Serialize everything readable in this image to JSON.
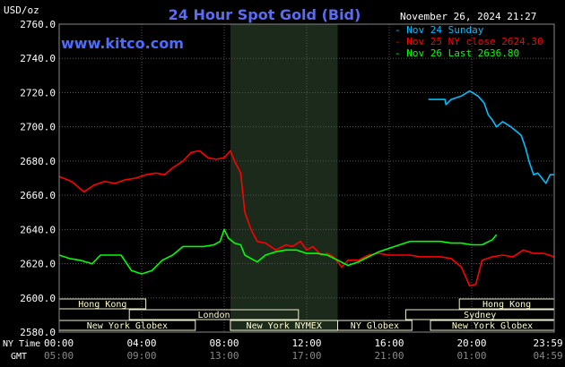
{
  "header": {
    "unit_label": "USD/oz",
    "title": "24 Hour Spot Gold (Bid)",
    "timestamp": "November 26, 2024 21:27",
    "site": "www.kitco.com"
  },
  "colors": {
    "nov24": "#00bfff",
    "nov25": "#ff0000",
    "nov26": "#00ff00",
    "grid": "#555555",
    "text": "#ffffff",
    "session_fill": "#ffffee",
    "nymex_shade": "#1c2a1c"
  },
  "legend": [
    {
      "label": "Nov 24 Sunday",
      "color": "#00bfff"
    },
    {
      "label": "Nov 25 NY close 2624.30",
      "color": "#ff0000"
    },
    {
      "label": "Nov 26 Last 2636.80",
      "color": "#00ff00"
    }
  ],
  "row_labels": {
    "ny_time": "NY Time",
    "gmt": "GMT"
  },
  "sessions": [
    {
      "label": "Hong Kong",
      "start": 0,
      "end": 4.2
    },
    {
      "label": "London",
      "start": 3.4,
      "end": 11.6
    },
    {
      "label": "New York Globex",
      "start": 0,
      "end": 6.6
    },
    {
      "label": "New York NYMEX",
      "start": 8.3,
      "end": 13.5
    },
    {
      "label": "NY Globex",
      "start": 13.5,
      "end": 17.1
    },
    {
      "label": "Hong Kong",
      "start": 19.4,
      "end": 24
    },
    {
      "label": "Sydney",
      "start": 16.8,
      "end": 24
    },
    {
      "label": "New York Globex",
      "start": 18,
      "end": 24
    }
  ],
  "chart_data": {
    "type": "line",
    "title": "24 Hour Spot Gold (Bid)",
    "ylabel": "USD/oz",
    "ylim": [
      2580,
      2760
    ],
    "yticks": [
      "2760.0",
      "2740.0",
      "2720.0",
      "2700.0",
      "2680.0",
      "2660.0",
      "2640.0",
      "2620.0",
      "2600.0",
      "2580.0"
    ],
    "xlim": [
      0,
      24
    ],
    "xticks_ny": [
      "00:00",
      "04:00",
      "08:00",
      "12:00",
      "16:00",
      "20:00",
      "23:59"
    ],
    "xticks_gmt": [
      "05:00",
      "09:00",
      "13:00",
      "17:00",
      "21:00",
      "01:00",
      "04:59"
    ],
    "nymex_session": [
      8.3,
      13.5
    ],
    "series": [
      {
        "name": "Nov 24 Sunday",
        "color": "#00bfff",
        "x": [
          17.9,
          18.7,
          18.75,
          19.0,
          19.5,
          19.9,
          20.3,
          20.6,
          20.8,
          21.0,
          21.2,
          21.5,
          21.9,
          22.2,
          22.4,
          22.6,
          22.8,
          23.0,
          23.2,
          23.4,
          23.6,
          23.8,
          23.98
        ],
        "y": [
          2716,
          2716,
          2713,
          2716,
          2718,
          2721,
          2718,
          2714,
          2707,
          2704,
          2700,
          2703,
          2700,
          2697,
          2695,
          2688,
          2679,
          2672,
          2673,
          2670,
          2667,
          2672,
          2672
        ]
      },
      {
        "name": "Nov 25 NY close 2624.30",
        "color": "#ff0000",
        "x": [
          0,
          0.6,
          1.0,
          1.2,
          1.7,
          2.2,
          2.7,
          3.2,
          3.7,
          4.2,
          4.7,
          5.1,
          5.5,
          6.0,
          6.4,
          6.8,
          7.2,
          7.6,
          8.0,
          8.3,
          8.5,
          8.8,
          9.0,
          9.3,
          9.6,
          10.0,
          10.5,
          11.0,
          11.3,
          11.7,
          12.0,
          12.3,
          12.7,
          13.0,
          13.3,
          13.7,
          14.0,
          14.5,
          15.0,
          15.5,
          16.0,
          16.5,
          17.0,
          17.5,
          18.0,
          18.5,
          19.0,
          19.5,
          19.9,
          20.2,
          20.5,
          21.0,
          21.5,
          22.0,
          22.5,
          23.0,
          23.5,
          23.98
        ],
        "y": [
          2671,
          2668,
          2664,
          2662,
          2666,
          2668,
          2667,
          2669,
          2670,
          2672,
          2673,
          2672,
          2676,
          2680,
          2685,
          2686,
          2682,
          2681,
          2682,
          2686,
          2680,
          2673,
          2650,
          2640,
          2633,
          2632,
          2628,
          2631,
          2630,
          2633,
          2628,
          2630,
          2625,
          2626,
          2624,
          2618,
          2622,
          2622,
          2625,
          2626,
          2625,
          2625,
          2625,
          2624,
          2624,
          2624,
          2623,
          2618,
          2607,
          2608,
          2622,
          2624,
          2625,
          2624,
          2628,
          2626,
          2626,
          2624
        ]
      },
      {
        "name": "Nov 26 Last 2636.80",
        "color": "#00ff00",
        "x": [
          0,
          0.5,
          1.0,
          1.3,
          1.6,
          2.0,
          2.5,
          3.0,
          3.5,
          4.0,
          4.5,
          5.0,
          5.5,
          6.0,
          6.5,
          7.0,
          7.5,
          7.8,
          8.0,
          8.2,
          8.5,
          8.8,
          9.0,
          9.3,
          9.6,
          10.0,
          10.5,
          11.0,
          11.5,
          12.0,
          12.5,
          13.0,
          13.5,
          14.0,
          14.5,
          15.0,
          15.5,
          16.0,
          16.5,
          17.0,
          17.5,
          18.0,
          18.5,
          19.0,
          19.5,
          20.0,
          20.5,
          21.0,
          21.2
        ],
        "y": [
          2625,
          2623,
          2622,
          2621,
          2620,
          2625,
          2625,
          2625,
          2616,
          2614,
          2616,
          2622,
          2625,
          2630,
          2630,
          2630,
          2631,
          2633,
          2640,
          2635,
          2632,
          2631,
          2625,
          2623,
          2621,
          2625,
          2627,
          2628,
          2628,
          2626,
          2626,
          2625,
          2622,
          2619,
          2621,
          2624,
          2627,
          2629,
          2631,
          2633,
          2633,
          2633,
          2633,
          2632,
          2632,
          2631,
          2631,
          2634,
          2637
        ]
      }
    ]
  }
}
